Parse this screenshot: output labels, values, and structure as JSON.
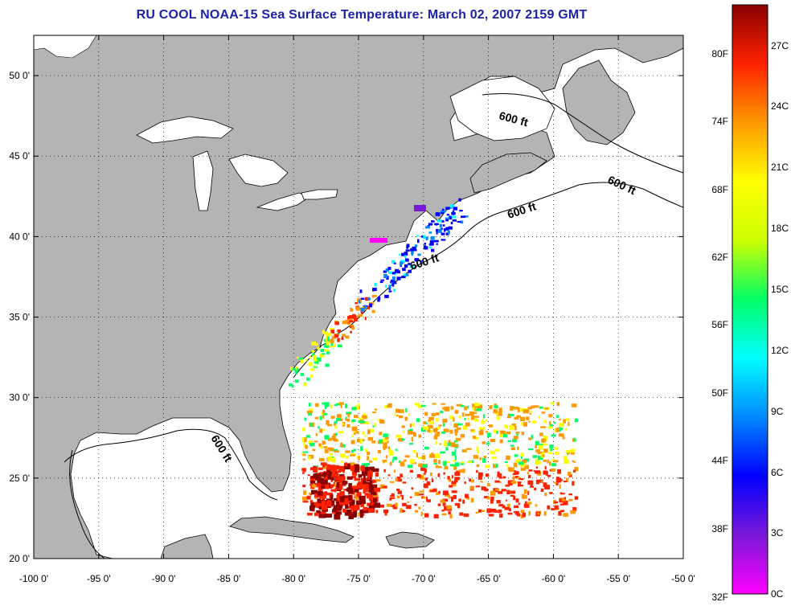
{
  "title": "RU COOL  NOAA-15  Sea Surface Temperature:  March 02, 2007 2159 GMT",
  "map": {
    "lon_range": [
      -100,
      -50
    ],
    "lat_range": [
      20,
      52.5
    ],
    "grid": true,
    "lon_ticks": [
      "-100 0'",
      "-95 0'",
      "-90 0'",
      "-85 0'",
      "-80 0'",
      "-75 0'",
      "-70 0'",
      "-65 0'",
      "-60 0'",
      "-55 0'",
      "-50 0'"
    ],
    "lat_ticks": [
      "20 0'",
      "25 0'",
      "30 0'",
      "35 0'",
      "40 0'",
      "45 0'",
      "50 0'"
    ],
    "contour_labels": [
      "600 ft",
      "600 ft",
      "600 ft",
      "600 ft",
      "600 ft"
    ],
    "land_color": "#b4b4b4",
    "ocean_color": "#ffffff"
  },
  "colorbar": {
    "fahrenheit_labels": [
      "80F",
      "74F",
      "68F",
      "62F",
      "56F",
      "50F",
      "44F",
      "38F",
      "32F"
    ],
    "celsius_labels": [
      "27C",
      "24C",
      "21C",
      "18C",
      "15C",
      "12C",
      "9C",
      "6C",
      "3C",
      "0C"
    ],
    "colors": [
      "#ff00ff",
      "#7a18d8",
      "#0000ff",
      "#0088ff",
      "#00ffff",
      "#00ff66",
      "#ccff00",
      "#ffff00",
      "#ff9900",
      "#ff2200",
      "#8a0000"
    ]
  }
}
